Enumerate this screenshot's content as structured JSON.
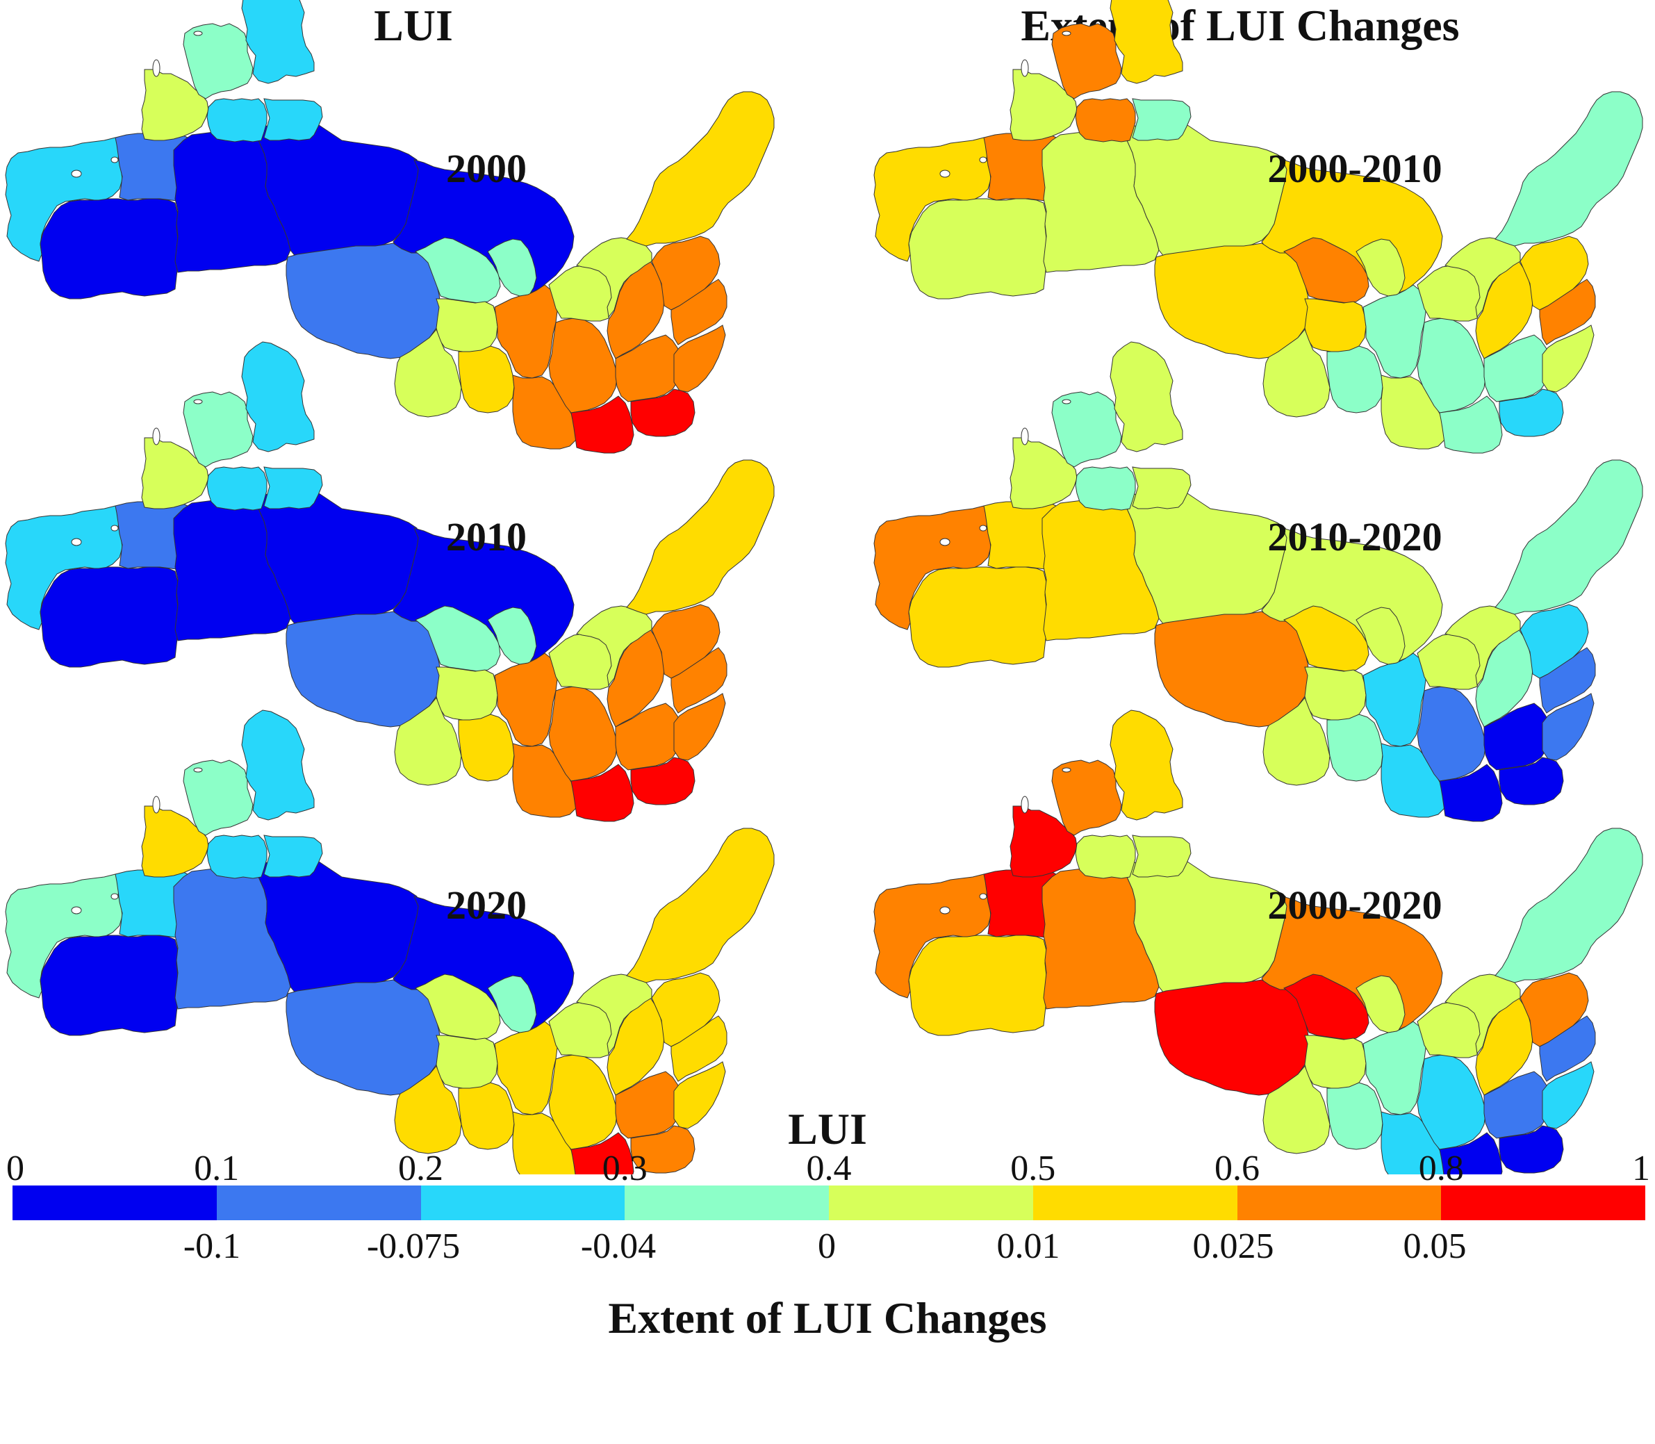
{
  "titles": {
    "left": "LUI",
    "right": "Extent of LUI Changes"
  },
  "panels": [
    {
      "label": "2000",
      "scheme": "A"
    },
    {
      "label": "2000-2010",
      "scheme": "B"
    },
    {
      "label": "2010",
      "scheme": "A"
    },
    {
      "label": "2010-2020",
      "scheme": "C"
    },
    {
      "label": "2020",
      "scheme": "D"
    },
    {
      "label": "2000-2020",
      "scheme": "E"
    }
  ],
  "legend": {
    "top_title": "LUI",
    "bottom_title": "Extent of LUI Changes",
    "lui_ticks": [
      "0",
      "0.1",
      "0.2",
      "0.3",
      "0.4",
      "0.5",
      "0.6",
      "0.8",
      "1"
    ],
    "change_ticks": [
      "-0.1",
      "-0.075",
      "-0.04",
      "0",
      "0.01",
      "0.025",
      "0.05"
    ],
    "colors": [
      "#0000f0",
      "#3c78f0",
      "#28d7fa",
      "#8cffc8",
      "#d7ff5a",
      "#ffdc00",
      "#ff8200",
      "#ff0000"
    ]
  }
}
